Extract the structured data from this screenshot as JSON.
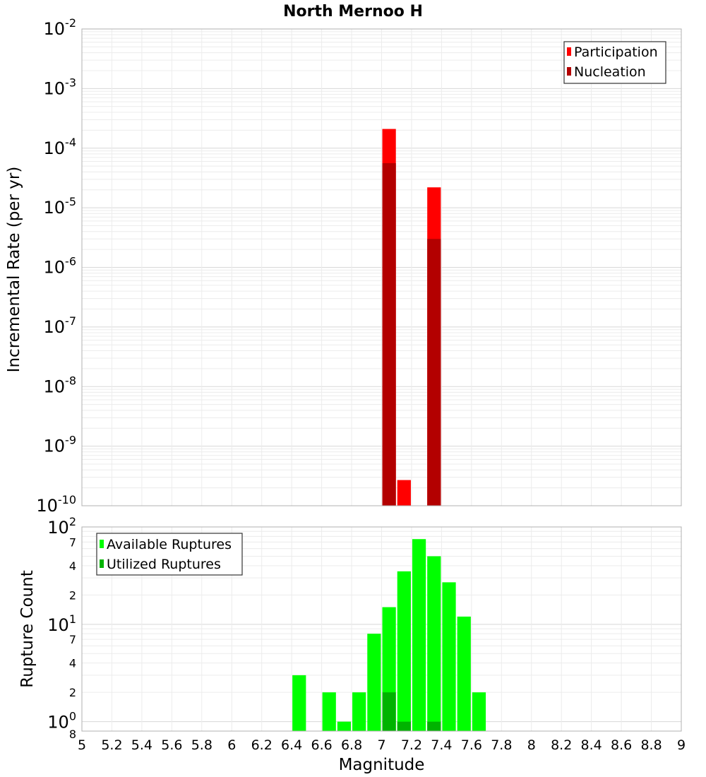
{
  "title": "North Mernoo H",
  "chart_data": [
    {
      "type": "bar",
      "name": "rate-panel",
      "ylabel": "Incremental Rate (per yr)",
      "yscale": "log",
      "ylim": [
        1e-10,
        0.01
      ],
      "xlim": [
        5,
        9
      ],
      "bin_width": 0.1,
      "y_ticks": [
        {
          "base": "10",
          "exp": "-10"
        },
        {
          "base": "10",
          "exp": "-9"
        },
        {
          "base": "10",
          "exp": "-8"
        },
        {
          "base": "10",
          "exp": "-7"
        },
        {
          "base": "10",
          "exp": "-6"
        },
        {
          "base": "10",
          "exp": "-5"
        },
        {
          "base": "10",
          "exp": "-4"
        },
        {
          "base": "10",
          "exp": "-3"
        },
        {
          "base": "10",
          "exp": "-2"
        }
      ],
      "legend": {
        "position": "top-right",
        "entries": [
          "Participation",
          "Nucleation"
        ]
      },
      "series": [
        {
          "name": "Participation",
          "color": "#ff0000",
          "x": [
            7.05,
            7.15,
            7.35
          ],
          "values": [
            0.00021,
            2.7e-10,
            2.2e-05
          ]
        },
        {
          "name": "Nucleation",
          "color": "#b30000",
          "x": [
            7.05,
            7.35
          ],
          "values": [
            5.6e-05,
            3e-06
          ]
        }
      ]
    },
    {
      "type": "bar",
      "name": "count-panel",
      "ylabel": "Rupture Count",
      "yscale": "log",
      "ylim": [
        0.8,
        100
      ],
      "xlim": [
        5,
        9
      ],
      "xlabel": "Magnitude",
      "bin_width": 0.1,
      "x_ticks": [
        "5",
        "5.2",
        "5.4",
        "5.6",
        "5.8",
        "6",
        "6.2",
        "6.4",
        "6.6",
        "6.8",
        "7",
        "7.2",
        "7.4",
        "7.6",
        "7.8",
        "8",
        "8.2",
        "8.4",
        "8.6",
        "8.8",
        "9"
      ],
      "y_major_ticks": [
        {
          "base": "10",
          "exp": "0"
        },
        {
          "base": "10",
          "exp": "1"
        },
        {
          "base": "10",
          "exp": "2"
        }
      ],
      "y_minor_ticks": [
        {
          "value": 0.8,
          "label": "8"
        },
        {
          "value": 2,
          "label": "2"
        },
        {
          "value": 4,
          "label": "4"
        },
        {
          "value": 7,
          "label": "7"
        },
        {
          "value": 20,
          "label": "2"
        },
        {
          "value": 40,
          "label": "4"
        },
        {
          "value": 70,
          "label": "7"
        }
      ],
      "legend": {
        "position": "top-left",
        "entries": [
          "Available Ruptures",
          "Utilized Ruptures"
        ]
      },
      "series": [
        {
          "name": "Available Ruptures",
          "color": "#00ff00",
          "x": [
            6.45,
            6.65,
            6.75,
            6.85,
            6.95,
            7.05,
            7.15,
            7.25,
            7.35,
            7.45,
            7.55,
            7.65
          ],
          "values": [
            3,
            2,
            1,
            2,
            8,
            15,
            35,
            75,
            50,
            27,
            12,
            2
          ]
        },
        {
          "name": "Utilized Ruptures",
          "color": "#00b300",
          "x": [
            7.05,
            7.15,
            7.35
          ],
          "values": [
            2,
            1,
            1
          ]
        }
      ]
    }
  ]
}
